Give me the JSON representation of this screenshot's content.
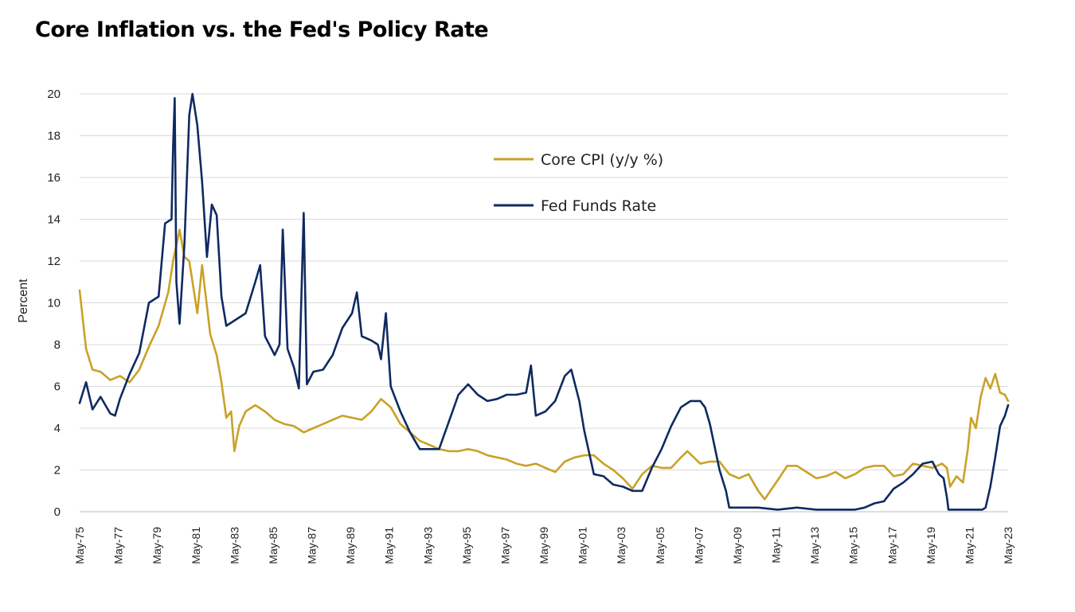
{
  "chart_data": {
    "type": "line",
    "title": "Core Inflation vs. the Fed's Policy Rate",
    "ylabel": "Percent",
    "xlabel": "",
    "ylim": [
      0,
      20
    ],
    "y_ticks": [
      "0",
      "2",
      "4",
      "6",
      "8",
      "10",
      "12",
      "14",
      "16",
      "18",
      "20"
    ],
    "x_ticks": [
      "May-75",
      "May-77",
      "May-79",
      "May-81",
      "May-83",
      "May-85",
      "May-87",
      "May-89",
      "May-91",
      "May-93",
      "May-95",
      "May-97",
      "May-99",
      "May-01",
      "May-03",
      "May-05",
      "May-07",
      "May-09",
      "May-11",
      "May-13",
      "May-15",
      "May-17",
      "May-19",
      "May-21",
      "May-23"
    ],
    "xlim": [
      "1975-05",
      "2023-05"
    ],
    "grid": "horizontal",
    "legend_position": "upper-center",
    "series": [
      {
        "name": "Core CPI (y/y %)",
        "color": "#C9A227",
        "points": [
          [
            "1975-05",
            10.6
          ],
          [
            "1975-09",
            7.8
          ],
          [
            "1976-01",
            6.8
          ],
          [
            "1976-06",
            6.7
          ],
          [
            "1976-12",
            6.3
          ],
          [
            "1977-06",
            6.5
          ],
          [
            "1977-12",
            6.2
          ],
          [
            "1978-06",
            6.8
          ],
          [
            "1978-12",
            7.9
          ],
          [
            "1979-06",
            8.9
          ],
          [
            "1979-12",
            10.5
          ],
          [
            "1980-03",
            12.0
          ],
          [
            "1980-07",
            13.5
          ],
          [
            "1980-10",
            12.2
          ],
          [
            "1981-01",
            12.0
          ],
          [
            "1981-06",
            9.5
          ],
          [
            "1981-09",
            11.8
          ],
          [
            "1982-02",
            8.5
          ],
          [
            "1982-06",
            7.5
          ],
          [
            "1982-09",
            6.2
          ],
          [
            "1982-12",
            4.5
          ],
          [
            "1983-03",
            4.8
          ],
          [
            "1983-05",
            2.9
          ],
          [
            "1983-08",
            4.1
          ],
          [
            "1983-12",
            4.8
          ],
          [
            "1984-06",
            5.1
          ],
          [
            "1984-12",
            4.8
          ],
          [
            "1985-06",
            4.4
          ],
          [
            "1985-12",
            4.2
          ],
          [
            "1986-06",
            4.1
          ],
          [
            "1986-12",
            3.8
          ],
          [
            "1987-06",
            4.0
          ],
          [
            "1987-12",
            4.2
          ],
          [
            "1988-06",
            4.4
          ],
          [
            "1988-12",
            4.6
          ],
          [
            "1989-06",
            4.5
          ],
          [
            "1989-12",
            4.4
          ],
          [
            "1990-06",
            4.8
          ],
          [
            "1990-12",
            5.4
          ],
          [
            "1991-06",
            5.0
          ],
          [
            "1991-12",
            4.2
          ],
          [
            "1992-06",
            3.8
          ],
          [
            "1992-12",
            3.4
          ],
          [
            "1993-06",
            3.2
          ],
          [
            "1993-12",
            3.0
          ],
          [
            "1994-06",
            2.9
          ],
          [
            "1994-12",
            2.9
          ],
          [
            "1995-06",
            3.0
          ],
          [
            "1995-12",
            2.9
          ],
          [
            "1996-06",
            2.7
          ],
          [
            "1996-12",
            2.6
          ],
          [
            "1997-06",
            2.5
          ],
          [
            "1997-12",
            2.3
          ],
          [
            "1998-06",
            2.2
          ],
          [
            "1998-12",
            2.3
          ],
          [
            "1999-06",
            2.1
          ],
          [
            "1999-12",
            1.9
          ],
          [
            "2000-06",
            2.4
          ],
          [
            "2000-12",
            2.6
          ],
          [
            "2001-06",
            2.7
          ],
          [
            "2001-12",
            2.7
          ],
          [
            "2002-06",
            2.3
          ],
          [
            "2002-12",
            2.0
          ],
          [
            "2003-06",
            1.6
          ],
          [
            "2003-12",
            1.1
          ],
          [
            "2004-06",
            1.8
          ],
          [
            "2004-12",
            2.2
          ],
          [
            "2005-06",
            2.1
          ],
          [
            "2005-12",
            2.1
          ],
          [
            "2006-06",
            2.6
          ],
          [
            "2006-10",
            2.9
          ],
          [
            "2007-06",
            2.3
          ],
          [
            "2007-12",
            2.4
          ],
          [
            "2008-06",
            2.4
          ],
          [
            "2008-12",
            1.8
          ],
          [
            "2009-06",
            1.6
          ],
          [
            "2009-12",
            1.8
          ],
          [
            "2010-06",
            1.0
          ],
          [
            "2010-10",
            0.6
          ],
          [
            "2011-06",
            1.5
          ],
          [
            "2011-12",
            2.2
          ],
          [
            "2012-06",
            2.2
          ],
          [
            "2012-12",
            1.9
          ],
          [
            "2013-06",
            1.6
          ],
          [
            "2013-12",
            1.7
          ],
          [
            "2014-06",
            1.9
          ],
          [
            "2014-12",
            1.6
          ],
          [
            "2015-06",
            1.8
          ],
          [
            "2015-12",
            2.1
          ],
          [
            "2016-06",
            2.2
          ],
          [
            "2016-12",
            2.2
          ],
          [
            "2017-06",
            1.7
          ],
          [
            "2017-12",
            1.8
          ],
          [
            "2018-06",
            2.3
          ],
          [
            "2018-12",
            2.2
          ],
          [
            "2019-06",
            2.1
          ],
          [
            "2019-12",
            2.3
          ],
          [
            "2020-03",
            2.1
          ],
          [
            "2020-05",
            1.2
          ],
          [
            "2020-09",
            1.7
          ],
          [
            "2021-01",
            1.4
          ],
          [
            "2021-04",
            3.0
          ],
          [
            "2021-06",
            4.5
          ],
          [
            "2021-09",
            4.0
          ],
          [
            "2021-12",
            5.5
          ],
          [
            "2022-03",
            6.4
          ],
          [
            "2022-06",
            5.9
          ],
          [
            "2022-09",
            6.6
          ],
          [
            "2022-12",
            5.7
          ],
          [
            "2023-03",
            5.6
          ],
          [
            "2023-05",
            5.3
          ]
        ]
      },
      {
        "name": "Fed Funds Rate",
        "color": "#0F2A62",
        "points": [
          [
            "1975-05",
            5.2
          ],
          [
            "1975-09",
            6.2
          ],
          [
            "1976-01",
            4.9
          ],
          [
            "1976-06",
            5.5
          ],
          [
            "1976-12",
            4.7
          ],
          [
            "1977-03",
            4.6
          ],
          [
            "1977-06",
            5.4
          ],
          [
            "1977-12",
            6.6
          ],
          [
            "1978-06",
            7.6
          ],
          [
            "1978-12",
            10.0
          ],
          [
            "1979-06",
            10.3
          ],
          [
            "1979-10",
            13.8
          ],
          [
            "1980-02",
            14.0
          ],
          [
            "1980-03",
            17.5
          ],
          [
            "1980-04",
            19.8
          ],
          [
            "1980-05",
            11.0
          ],
          [
            "1980-07",
            9.0
          ],
          [
            "1980-10",
            12.8
          ],
          [
            "1981-01",
            19.0
          ],
          [
            "1981-03",
            20.0
          ],
          [
            "1981-06",
            18.5
          ],
          [
            "1981-09",
            15.8
          ],
          [
            "1981-12",
            12.2
          ],
          [
            "1982-03",
            14.7
          ],
          [
            "1982-06",
            14.2
          ],
          [
            "1982-09",
            10.3
          ],
          [
            "1982-12",
            8.9
          ],
          [
            "1983-06",
            9.2
          ],
          [
            "1983-12",
            9.5
          ],
          [
            "1984-06",
            11.0
          ],
          [
            "1984-09",
            11.8
          ],
          [
            "1984-12",
            8.4
          ],
          [
            "1985-06",
            7.5
          ],
          [
            "1985-09",
            8.0
          ],
          [
            "1985-11",
            13.5
          ],
          [
            "1986-02",
            7.8
          ],
          [
            "1986-06",
            6.9
          ],
          [
            "1986-09",
            5.9
          ],
          [
            "1986-12",
            14.3
          ],
          [
            "1987-02",
            6.1
          ],
          [
            "1987-06",
            6.7
          ],
          [
            "1987-12",
            6.8
          ],
          [
            "1988-06",
            7.5
          ],
          [
            "1988-12",
            8.8
          ],
          [
            "1989-06",
            9.5
          ],
          [
            "1989-09",
            10.5
          ],
          [
            "1989-12",
            8.4
          ],
          [
            "1990-06",
            8.2
          ],
          [
            "1990-10",
            8.0
          ],
          [
            "1990-12",
            7.3
          ],
          [
            "1991-03",
            9.5
          ],
          [
            "1991-06",
            6.0
          ],
          [
            "1991-12",
            4.8
          ],
          [
            "1992-06",
            3.8
          ],
          [
            "1992-12",
            3.0
          ],
          [
            "1993-06",
            3.0
          ],
          [
            "1993-12",
            3.0
          ],
          [
            "1994-06",
            4.3
          ],
          [
            "1994-12",
            5.6
          ],
          [
            "1995-06",
            6.1
          ],
          [
            "1995-12",
            5.6
          ],
          [
            "1996-06",
            5.3
          ],
          [
            "1996-12",
            5.4
          ],
          [
            "1997-06",
            5.6
          ],
          [
            "1997-12",
            5.6
          ],
          [
            "1998-06",
            5.7
          ],
          [
            "1998-09",
            7.0
          ],
          [
            "1998-12",
            4.6
          ],
          [
            "1999-06",
            4.8
          ],
          [
            "1999-12",
            5.3
          ],
          [
            "2000-06",
            6.5
          ],
          [
            "2000-10",
            6.8
          ],
          [
            "2001-03",
            5.3
          ],
          [
            "2001-06",
            3.9
          ],
          [
            "2001-12",
            1.8
          ],
          [
            "2002-06",
            1.7
          ],
          [
            "2002-12",
            1.3
          ],
          [
            "2003-06",
            1.2
          ],
          [
            "2003-12",
            1.0
          ],
          [
            "2004-06",
            1.0
          ],
          [
            "2004-12",
            2.1
          ],
          [
            "2005-06",
            3.0
          ],
          [
            "2005-12",
            4.1
          ],
          [
            "2006-06",
            5.0
          ],
          [
            "2006-12",
            5.3
          ],
          [
            "2007-06",
            5.3
          ],
          [
            "2007-09",
            5.0
          ],
          [
            "2007-12",
            4.2
          ],
          [
            "2008-06",
            2.0
          ],
          [
            "2008-10",
            1.0
          ],
          [
            "2008-12",
            0.2
          ],
          [
            "2009-06",
            0.2
          ],
          [
            "2010-06",
            0.2
          ],
          [
            "2011-06",
            0.1
          ],
          [
            "2012-06",
            0.2
          ],
          [
            "2013-06",
            0.1
          ],
          [
            "2014-06",
            0.1
          ],
          [
            "2015-06",
            0.1
          ],
          [
            "2015-12",
            0.2
          ],
          [
            "2016-06",
            0.4
          ],
          [
            "2016-12",
            0.5
          ],
          [
            "2017-06",
            1.1
          ],
          [
            "2017-12",
            1.4
          ],
          [
            "2018-06",
            1.8
          ],
          [
            "2018-12",
            2.3
          ],
          [
            "2019-06",
            2.4
          ],
          [
            "2019-10",
            1.8
          ],
          [
            "2020-01",
            1.6
          ],
          [
            "2020-03",
            0.7
          ],
          [
            "2020-04",
            0.1
          ],
          [
            "2021-06",
            0.1
          ],
          [
            "2022-01",
            0.1
          ],
          [
            "2022-03",
            0.2
          ],
          [
            "2022-06",
            1.2
          ],
          [
            "2022-09",
            2.6
          ],
          [
            "2022-12",
            4.1
          ],
          [
            "2023-03",
            4.6
          ],
          [
            "2023-05",
            5.1
          ]
        ]
      }
    ]
  }
}
